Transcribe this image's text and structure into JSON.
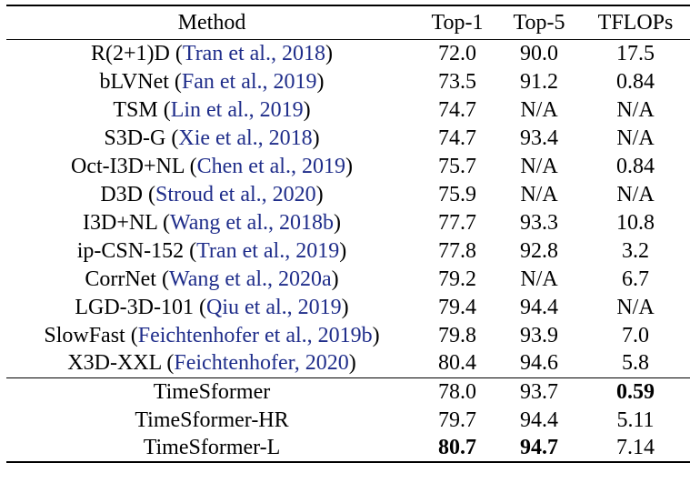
{
  "table": {
    "headers": [
      "Method",
      "Top-1",
      "Top-5",
      "TFLOPs"
    ],
    "prior_rows": [
      {
        "method": "R(2+1)D",
        "citation": "Tran et al., 2018",
        "top1": "72.0",
        "top5": "90.0",
        "tflops": "17.5"
      },
      {
        "method": "bLVNet",
        "citation": "Fan et al., 2019",
        "top1": "73.5",
        "top5": "91.2",
        "tflops": "0.84"
      },
      {
        "method": "TSM",
        "citation": "Lin et al., 2019",
        "top1": "74.7",
        "top5": "N/A",
        "tflops": "N/A"
      },
      {
        "method": "S3D-G",
        "citation": "Xie et al., 2018",
        "top1": "74.7",
        "top5": "93.4",
        "tflops": "N/A"
      },
      {
        "method": "Oct-I3D+NL",
        "citation": "Chen et al., 2019",
        "top1": "75.7",
        "top5": "N/A",
        "tflops": "0.84"
      },
      {
        "method": "D3D",
        "citation": "Stroud et al., 2020",
        "top1": "75.9",
        "top5": "N/A",
        "tflops": "N/A"
      },
      {
        "method": "I3D+NL",
        "citation": "Wang et al., 2018b",
        "top1": "77.7",
        "top5": "93.3",
        "tflops": "10.8"
      },
      {
        "method": "ip-CSN-152",
        "citation": "Tran et al., 2019",
        "top1": "77.8",
        "top5": "92.8",
        "tflops": "3.2"
      },
      {
        "method": "CorrNet",
        "citation": "Wang et al., 2020a",
        "top1": "79.2",
        "top5": "N/A",
        "tflops": "6.7"
      },
      {
        "method": "LGD-3D-101",
        "citation": "Qiu et al., 2019",
        "top1": "79.4",
        "top5": "94.4",
        "tflops": "N/A"
      },
      {
        "method": "SlowFast",
        "citation": "Feichtenhofer et al., 2019b",
        "top1": "79.8",
        "top5": "93.9",
        "tflops": "7.0"
      },
      {
        "method": "X3D-XXL",
        "citation": "Feichtenhofer, 2020",
        "top1": "80.4",
        "top5": "94.6",
        "tflops": "5.8"
      }
    ],
    "ours_rows": [
      {
        "method": "TimeSformer",
        "top1": "78.0",
        "top5": "93.7",
        "tflops": "0.59",
        "bold": [
          "tflops"
        ]
      },
      {
        "method": "TimeSformer-HR",
        "top1": "79.7",
        "top5": "94.4",
        "tflops": "5.11",
        "bold": []
      },
      {
        "method": "TimeSformer-L",
        "top1": "80.7",
        "top5": "94.7",
        "tflops": "7.14",
        "bold": [
          "top1",
          "top5"
        ]
      }
    ]
  },
  "colors": {
    "citation": "#1f2d8a",
    "text": "#000000",
    "background": "#ffffff"
  }
}
